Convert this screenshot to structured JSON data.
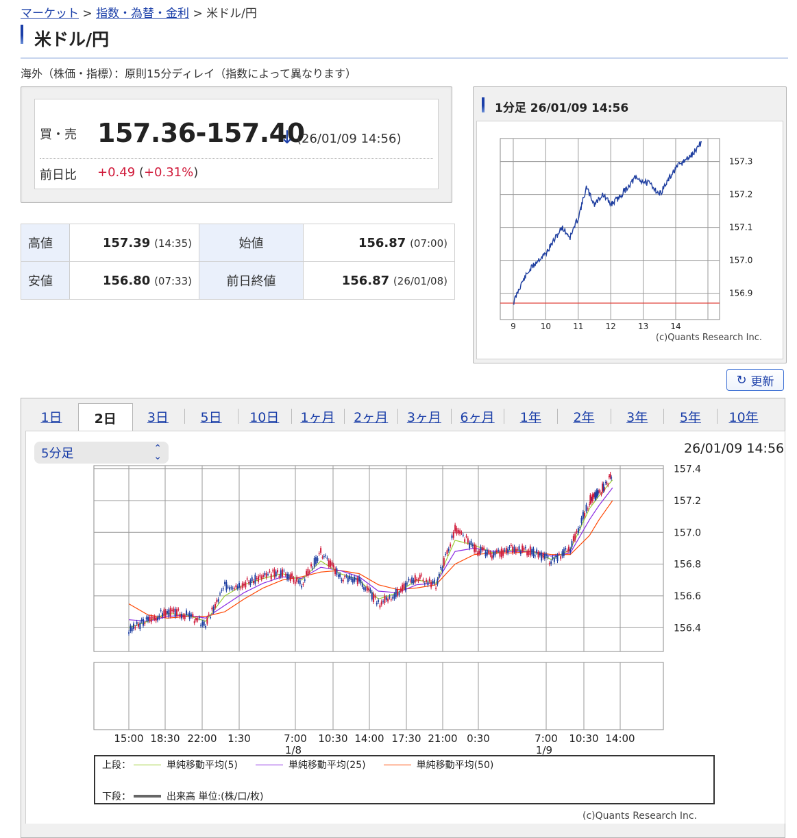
{
  "breadcrumb": {
    "items": [
      {
        "label": "マーケット",
        "link": true
      },
      {
        "label": "指数・為替・金利",
        "link": true
      },
      {
        "label": "米ドル/円",
        "link": false
      }
    ],
    "separator": ">"
  },
  "page_title": "米ドル/円",
  "notice": "海外（株価・指標）：原則15分ディレイ（指数によって異なります）",
  "quote": {
    "bidask_label": "買・売",
    "bidask_value": "157.36-157.40",
    "direction": "down",
    "time": "(26/01/09 14:56)",
    "change_label": "前日比",
    "change_value": "+0.49",
    "change_pct": "+0.31%"
  },
  "stats": {
    "high_label": "高値",
    "high_value": "157.39",
    "high_time": "(14:35)",
    "open_label": "始値",
    "open_value": "156.87",
    "open_time": "(07:00)",
    "low_label": "安値",
    "low_value": "156.80",
    "low_time": "(07:33)",
    "prevclose_label": "前日終値",
    "prevclose_value": "156.87",
    "prevclose_time": "(26/01/08)"
  },
  "mini_chart": {
    "title": "1分足 26/01/09 14:56",
    "credit": "(c)Quants Research Inc."
  },
  "refresh_label": "更新",
  "tabs": [
    "1日",
    "2日",
    "3日",
    "5日",
    "10日",
    "1ヶ月",
    "2ヶ月",
    "3ヶ月",
    "6ヶ月",
    "1年",
    "2年",
    "3年",
    "5年",
    "10年"
  ],
  "active_tab": "2日",
  "interval_select": {
    "value": "5分足"
  },
  "main_time": "26/01/09 14:56",
  "legend": {
    "upper_label": "上段：",
    "ma5": "単純移動平均(5)",
    "ma25": "単純移動平均(25)",
    "ma50": "単純移動平均(50)",
    "lower_label": "下段：",
    "volume": "出来高 単位:(株/口/枚)"
  },
  "main_credit": "(c)Quants Research Inc.",
  "colors": {
    "link": "#1a3ea8",
    "up": "#d01a3a",
    "ma5": "#9acd32",
    "ma25": "#8a2be2",
    "ma50": "#ff4500",
    "price_line": "#1f3fa0"
  },
  "chart_data": [
    {
      "type": "line",
      "title": "1分足 26/01/09 14:56",
      "x_ticks": [
        "9",
        "10",
        "11",
        "12",
        "13",
        "14"
      ],
      "y_ticks": [
        156.9,
        157.0,
        157.1,
        157.2,
        157.3
      ],
      "ylim": [
        156.82,
        157.37
      ],
      "x": [
        9.0,
        9.25,
        9.5,
        9.75,
        10.0,
        10.25,
        10.5,
        10.75,
        11.0,
        11.25,
        11.5,
        11.75,
        12.0,
        12.25,
        12.5,
        12.75,
        13.0,
        13.25,
        13.5,
        13.75,
        14.0,
        14.25,
        14.5,
        14.8
      ],
      "y": [
        156.87,
        156.93,
        156.97,
        157.0,
        157.02,
        157.06,
        157.1,
        157.07,
        157.13,
        157.22,
        157.17,
        157.2,
        157.17,
        157.19,
        157.22,
        157.25,
        157.24,
        157.23,
        157.2,
        157.24,
        157.28,
        157.3,
        157.32,
        157.36
      ],
      "reference_line": 156.87,
      "grid": true
    },
    {
      "type": "line",
      "title": "",
      "x_ticks": [
        "15:00",
        "18:30",
        "22:00",
        "1:30",
        "7:00 1/8",
        "10:30",
        "14:00",
        "17:30",
        "21:00",
        "0:30",
        "7:00 1/9",
        "10:30",
        "14:00"
      ],
      "y_ticks": [
        156.4,
        156.6,
        156.8,
        157.0,
        157.2,
        157.4
      ],
      "ylim": [
        156.25,
        157.42
      ],
      "x_index": [
        0,
        0.5,
        1,
        1.5,
        2,
        2.5,
        3,
        3.5,
        4,
        4.5,
        5,
        5.5,
        6,
        6.5,
        7,
        7.5,
        8,
        8.5,
        9,
        9.5,
        10,
        10.5,
        11,
        11.5,
        12,
        12.25,
        12.6
      ],
      "y": [
        156.38,
        156.45,
        156.5,
        156.48,
        156.42,
        156.66,
        156.68,
        156.72,
        156.75,
        156.68,
        156.88,
        156.72,
        156.7,
        156.55,
        156.62,
        156.72,
        156.67,
        157.02,
        156.9,
        156.85,
        156.9,
        156.88,
        156.82,
        156.9,
        157.2,
        157.25,
        157.36
      ],
      "series": [
        {
          "name": "単純移動平均(5)",
          "values": [
            156.4,
            156.44,
            156.49,
            156.48,
            156.44,
            156.6,
            156.67,
            156.71,
            156.74,
            156.7,
            156.82,
            156.74,
            156.7,
            156.58,
            156.62,
            156.7,
            156.68,
            156.95,
            156.92,
            156.87,
            156.89,
            156.88,
            156.83,
            156.89,
            157.15,
            157.23,
            157.33
          ]
        },
        {
          "name": "単純移動平均(25)",
          "values": [
            156.45,
            156.44,
            156.47,
            156.48,
            156.46,
            156.54,
            156.62,
            156.68,
            156.72,
            156.71,
            156.78,
            156.76,
            156.72,
            156.63,
            156.62,
            156.67,
            156.68,
            156.88,
            156.9,
            156.88,
            156.88,
            156.88,
            156.85,
            156.87,
            157.08,
            157.17,
            157.28
          ]
        },
        {
          "name": "単純移動平均(50)",
          "values": [
            156.55,
            156.48,
            156.46,
            156.47,
            156.47,
            156.5,
            156.58,
            156.65,
            156.7,
            156.72,
            156.75,
            156.76,
            156.74,
            156.67,
            156.64,
            156.65,
            156.67,
            156.8,
            156.86,
            156.87,
            156.87,
            156.88,
            156.86,
            156.86,
            156.98,
            157.08,
            157.2
          ]
        }
      ],
      "grid": true
    }
  ]
}
